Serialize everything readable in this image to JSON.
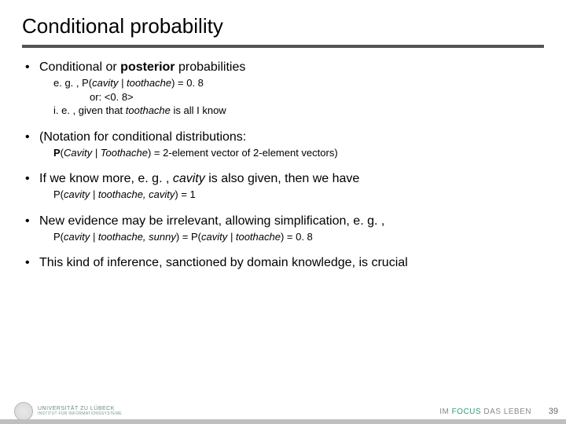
{
  "title": "Conditional probability",
  "bullets": [
    {
      "head_a": "Conditional or ",
      "head_b": "posterior",
      "head_c": " probabilities",
      "sub_lines": [
        {
          "plain_a": "e. g. , P(",
          "ital": "cavity | toothache",
          "plain_b": ") = 0. 8"
        },
        {
          "plain_a": "or: <0. 8>",
          "ital": "",
          "plain_b": "",
          "indent": true
        },
        {
          "plain_a": "i. e. , given that ",
          "ital": "toothache",
          "plain_b": " is all I know"
        }
      ]
    },
    {
      "head_a": "(Notation for conditional distributions:",
      "sub_lines": [
        {
          "bold_a": "P",
          "plain_a": "(",
          "ital": "Cavity | Toothache",
          "plain_b": ") = 2-element vector of 2-element vectors)"
        }
      ]
    },
    {
      "head_a": "If we know more, e. g. , ",
      "head_ital": "cavity",
      "head_c": " is also given, then we have",
      "sub_lines": [
        {
          "plain_a": "P(",
          "ital": "cavity | toothache, cavity",
          "plain_b": ") = 1"
        }
      ]
    },
    {
      "head_a": "New evidence may be irrelevant, allowing simplification, e. g. ,",
      "sub_lines": [
        {
          "plain_a": "P(",
          "ital": "cavity | toothache, sunny",
          "plain_b": ") = P(",
          "ital2": "cavity | toothache",
          "plain_c": ") = 0. 8"
        }
      ]
    },
    {
      "head_a": "This kind of inference, sanctioned by domain knowledge, is crucial"
    }
  ],
  "footer": {
    "univ_line1": "UNIVERSITÄT ZU LÜBECK",
    "univ_line2": "INSTITUT FÜR INFORMATIONSSYSTEME",
    "focus_a": "IM ",
    "focus_b": "FOCUS",
    "focus_c": " DAS LEBEN",
    "page": "39"
  },
  "colors": {
    "rule": "#545454",
    "footer_bar": "#bfbfbf",
    "accent": "#2aa07a"
  }
}
